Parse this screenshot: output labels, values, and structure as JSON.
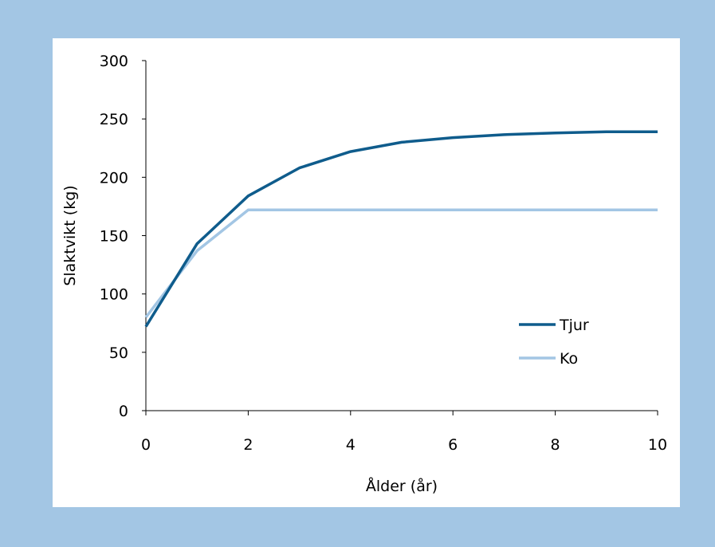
{
  "colors": {
    "frame_background": "#a3c6e4",
    "plot_background": "#ffffff",
    "axis": "#000000"
  },
  "chart_data": {
    "type": "line",
    "title": "",
    "xlabel": "Ålder (år)",
    "ylabel": "Slaktvikt (kg)",
    "xlim": [
      0,
      10
    ],
    "ylim": [
      0,
      300
    ],
    "xticks": [
      0,
      2,
      4,
      6,
      8,
      10
    ],
    "yticks": [
      0,
      50,
      100,
      150,
      200,
      250,
      300
    ],
    "grid": false,
    "legend_position": "lower-right",
    "series": [
      {
        "name": "Tjur",
        "color": "#0f5c8c",
        "x": [
          0,
          1,
          2,
          3,
          4,
          5,
          6,
          7,
          8,
          9,
          10
        ],
        "y": [
          72,
          143,
          184,
          208,
          222,
          230,
          234,
          236.5,
          238,
          239,
          239
        ]
      },
      {
        "name": "Ko",
        "color": "#a3c6e4",
        "x": [
          0,
          1,
          2,
          3,
          4,
          5,
          6,
          7,
          8,
          9,
          10
        ],
        "y": [
          80,
          137,
          172,
          172,
          172,
          172,
          172,
          172,
          172,
          172,
          172
        ]
      }
    ]
  }
}
